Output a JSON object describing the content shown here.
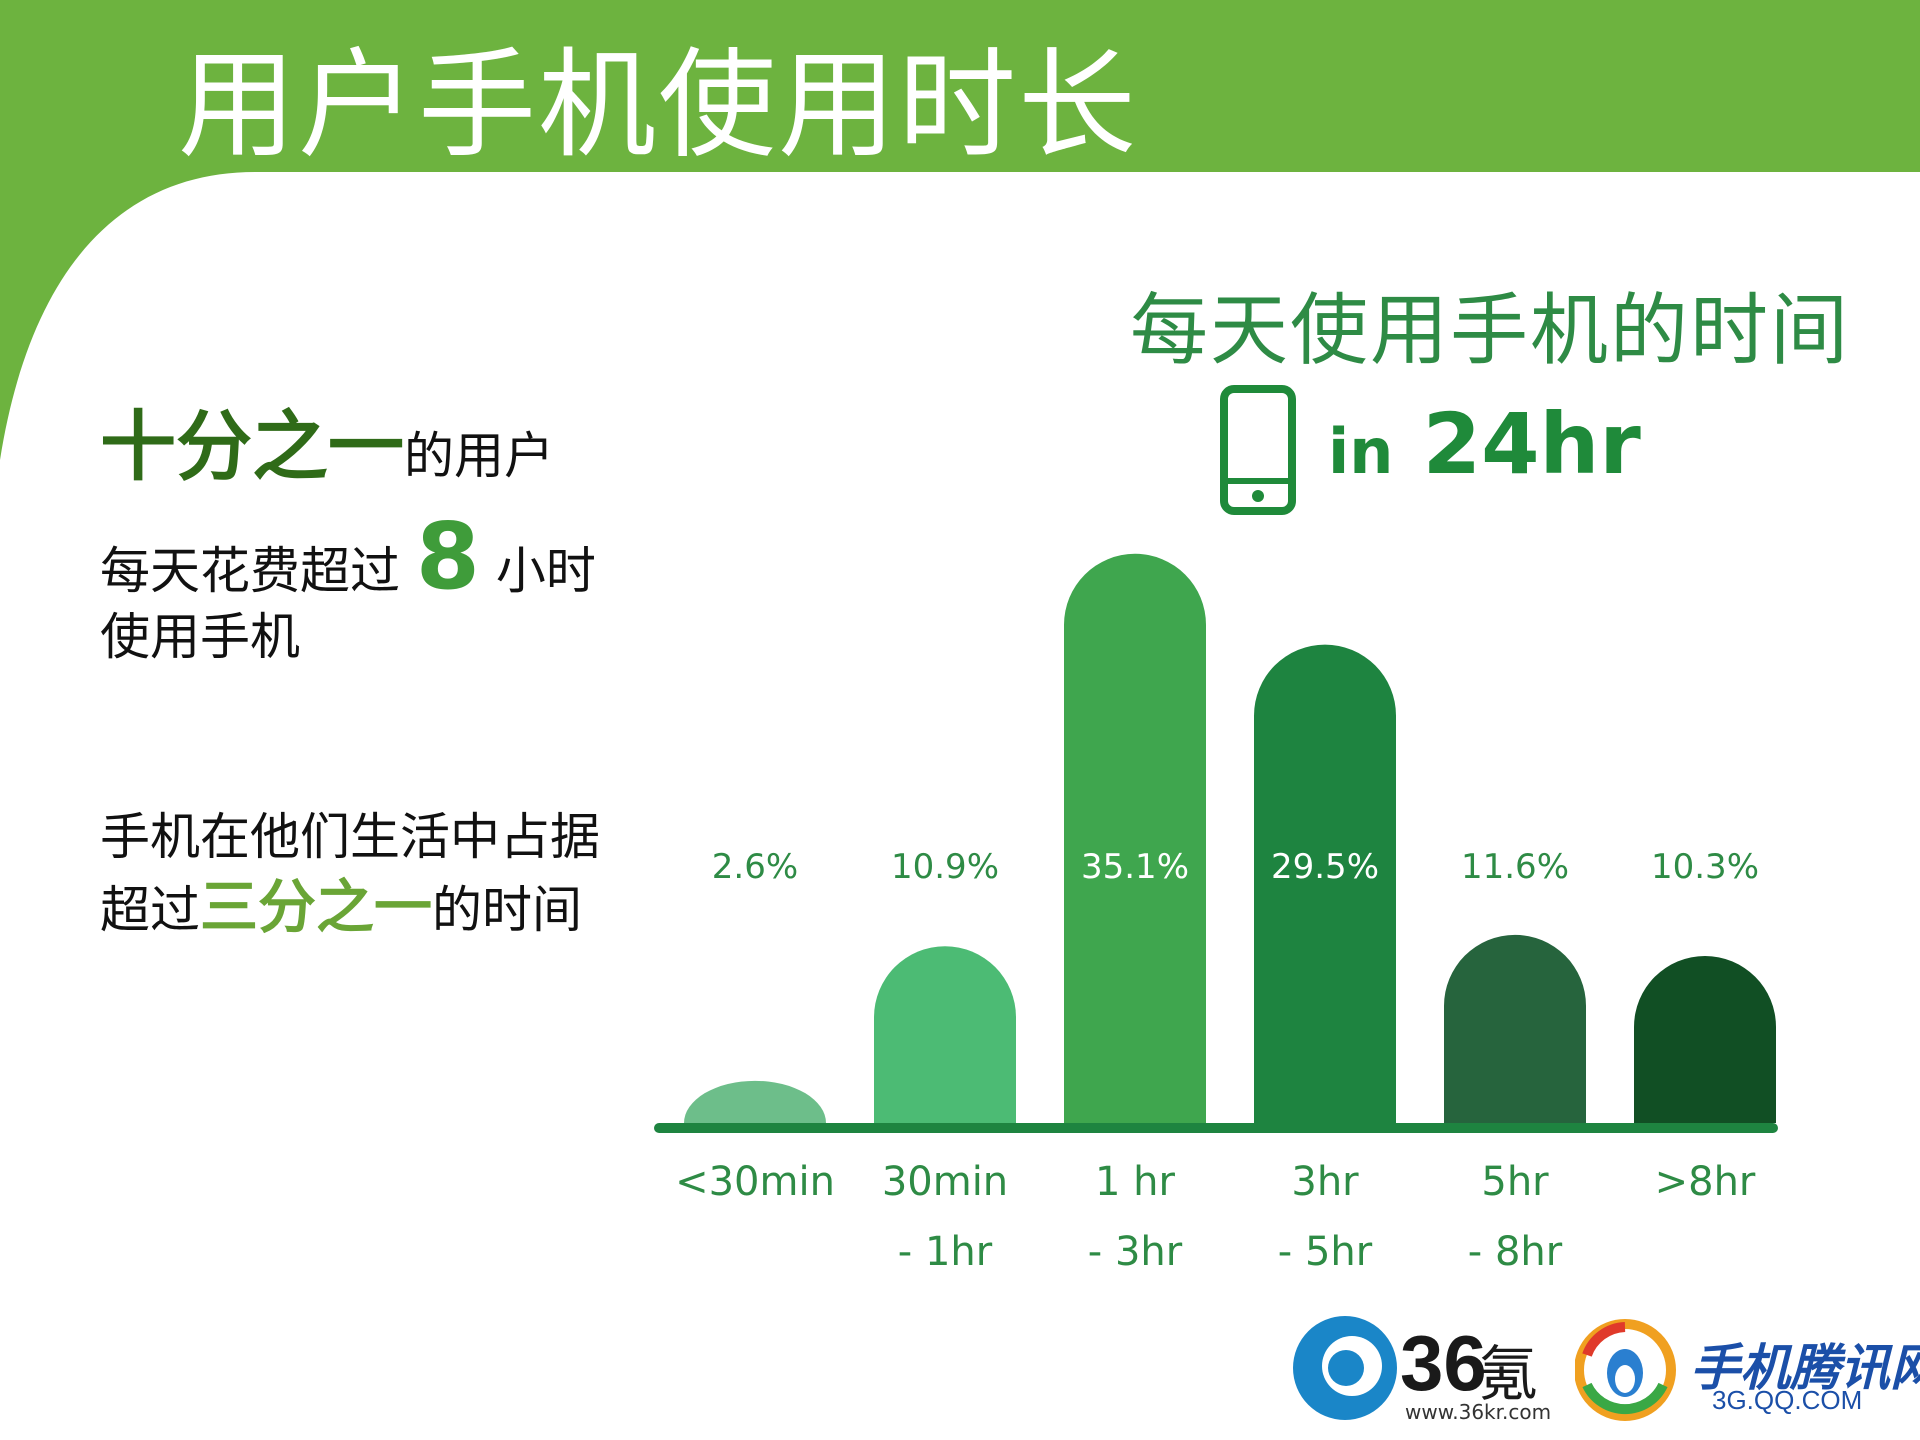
{
  "page": {
    "title": "用户手机使用时长",
    "accent_color": "#6db33f"
  },
  "left_panel": {
    "line1_emph": "十分之一",
    "line1_rest": "的用户",
    "line2_pre": "每天花费超过",
    "line2_num": "8",
    "line2_post": "小时",
    "line3": "使用手机",
    "line4": "手机在他们生活中占据",
    "line5_pre": "超过",
    "line5_emph": "三分之一",
    "line5_post": "的时间"
  },
  "infographic": {
    "subtitle": "每天使用手机的时间",
    "tag_in": "in",
    "tag_value": "24hr",
    "icon": "phone-icon"
  },
  "chart_data": {
    "type": "bar",
    "title": "每天使用手机的时间",
    "categories": [
      [
        "<30min"
      ],
      [
        "30min",
        "- 1hr"
      ],
      [
        "1 hr",
        "- 3hr"
      ],
      [
        "3hr",
        "- 5hr"
      ],
      [
        "5hr",
        "- 8hr"
      ],
      [
        ">8hr"
      ]
    ],
    "values": [
      2.6,
      10.9,
      35.1,
      29.5,
      11.6,
      10.3
    ],
    "value_labels": [
      "2.6%",
      "10.9%",
      "35.1%",
      "29.5%",
      "11.6%",
      "10.3%"
    ],
    "bar_colors": [
      "#6dbe8a",
      "#4cbb74",
      "#3fa64e",
      "#1e8440",
      "#26643d",
      "#114f24"
    ],
    "ylim": [
      0,
      37
    ],
    "grid": false,
    "label_color_inside": "#ffffff",
    "label_color_outside": "#2e8b45",
    "axis_color": "#1e8440"
  },
  "logos": {
    "kr_name": "36",
    "kr_cn": "氪",
    "kr_url": "www.36kr.com",
    "qq_name": "手机腾讯网",
    "qq_url": "3G.QQ.COM"
  }
}
